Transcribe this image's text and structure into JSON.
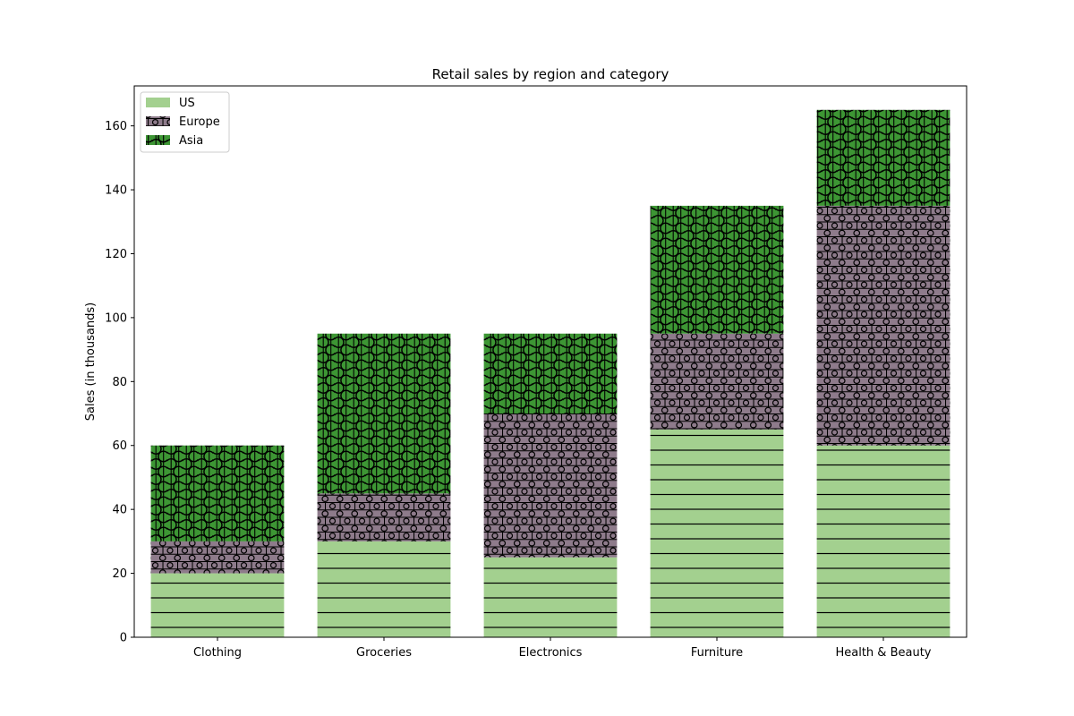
{
  "chart_data": {
    "type": "bar",
    "stacked": true,
    "title": "Retail sales by region and category",
    "xlabel": "",
    "ylabel": "Sales (in thousands)",
    "categories": [
      "Clothing",
      "Groceries",
      "Electronics",
      "Furniture",
      "Health & Beauty"
    ],
    "series": [
      {
        "name": "US",
        "values": [
          20,
          30,
          25,
          65,
          60
        ],
        "color": "#a3d08f",
        "hatch": "horizontal-lines"
      },
      {
        "name": "Europe",
        "values": [
          10,
          15,
          45,
          30,
          75
        ],
        "color": "#8e7b8b",
        "hatch": "small-circles-grid"
      },
      {
        "name": "Asia",
        "values": [
          30,
          50,
          25,
          40,
          30
        ],
        "color": "#3d9634",
        "hatch": "large-circles-vertical-lines"
      }
    ],
    "ylim": [
      0,
      172.5
    ],
    "yticks": [
      0,
      20,
      40,
      60,
      80,
      100,
      120,
      140,
      160
    ],
    "grid": false,
    "legend_position": "upper-left"
  }
}
